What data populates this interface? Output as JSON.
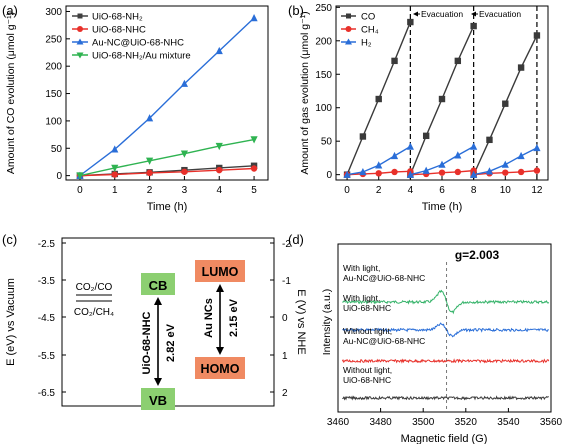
{
  "panels": [
    {
      "id": "a",
      "label": "(a)"
    },
    {
      "id": "b",
      "label": "(b)"
    },
    {
      "id": "c",
      "label": "(c)"
    },
    {
      "id": "d",
      "label": "(d)"
    }
  ],
  "chart_data": [
    {
      "panel": "(a)",
      "type": "line",
      "xlabel": "Time (h)",
      "ylabel": "Amount of CO evolution (μmol g⁻¹)",
      "xlim": [
        -0.4,
        5.4
      ],
      "ylim": [
        -8,
        310
      ],
      "x_ticks": [
        0,
        1,
        2,
        3,
        4,
        5
      ],
      "y_ticks": [
        0,
        50,
        100,
        150,
        200,
        250,
        300
      ],
      "legend_position": "top-left",
      "series": [
        {
          "name": "UiO-68-NH₂",
          "color": "#404040",
          "marker": "square",
          "x": [
            0,
            1,
            2,
            3,
            4,
            5
          ],
          "y": [
            0,
            3,
            6,
            10,
            14,
            18
          ]
        },
        {
          "name": "UiO-68-NHC",
          "color": "#e8302a",
          "marker": "circle",
          "x": [
            0,
            1,
            2,
            3,
            4,
            5
          ],
          "y": [
            0,
            2,
            5,
            7,
            10,
            13
          ]
        },
        {
          "name": "Au-NC@UiO-68-NHC",
          "color": "#2a6ed8",
          "marker": "triangle-up",
          "x": [
            0,
            1,
            2,
            3,
            4,
            5
          ],
          "y": [
            0,
            48,
            105,
            168,
            228,
            288
          ]
        },
        {
          "name": "UiO-68-NH₂/Au mixture",
          "color": "#2fb351",
          "marker": "triangle-down",
          "x": [
            0,
            1,
            2,
            3,
            4,
            5
          ],
          "y": [
            0,
            14,
            27,
            40,
            54,
            66
          ]
        }
      ]
    },
    {
      "panel": "(b)",
      "type": "line",
      "xlabel": "Time (h)",
      "ylabel": "Amount of gas evolution (μmol g⁻¹)",
      "xlim": [
        -0.7,
        12.7
      ],
      "ylim": [
        -8,
        252
      ],
      "x_ticks": [
        0,
        2,
        4,
        6,
        8,
        10,
        12
      ],
      "y_ticks": [
        0,
        50,
        100,
        150,
        200,
        250
      ],
      "legend_position": "top-left",
      "annotations": [
        "Evacuation",
        "Evacuation"
      ],
      "vlines": [
        4,
        8,
        12
      ],
      "series": [
        {
          "name": "CO",
          "color": "#3a3a3a",
          "marker": "square",
          "x": [
            0,
            1,
            2,
            3,
            4,
            4,
            5,
            6,
            7,
            8,
            8,
            9,
            10,
            11,
            12
          ],
          "y": [
            0,
            57,
            113,
            170,
            228,
            0,
            58,
            113,
            170,
            222,
            0,
            52,
            106,
            160,
            208
          ]
        },
        {
          "name": "CH₄",
          "color": "#e8302a",
          "marker": "circle",
          "x": [
            0,
            1,
            2,
            3,
            4,
            4,
            5,
            6,
            7,
            8,
            8,
            9,
            10,
            11,
            12
          ],
          "y": [
            0,
            1,
            2,
            4,
            5,
            0,
            1,
            3,
            4,
            6,
            0,
            2,
            3,
            4,
            6
          ]
        },
        {
          "name": "H₂",
          "color": "#2a6ed8",
          "marker": "triangle-up",
          "x": [
            0,
            1,
            2,
            3,
            4,
            4,
            5,
            6,
            7,
            8,
            8,
            9,
            10,
            11,
            12
          ],
          "y": [
            0,
            4,
            14,
            28,
            42,
            0,
            6,
            15,
            29,
            42,
            0,
            5,
            15,
            28,
            40
          ]
        }
      ]
    },
    {
      "panel": "(c)",
      "type": "diagram",
      "left_axis": {
        "label": "E (eV) vs Vacuum",
        "ticks": [
          "-2.5",
          "-3.5",
          "-4.5",
          "-5.5",
          "-6.5"
        ]
      },
      "right_axis": {
        "label": "E (V) vs NHE",
        "ticks": [
          "-2",
          "-1",
          "0",
          "1",
          "2"
        ]
      },
      "couple_top": "CO₂/CO",
      "couple_bottom": "CO₂/CH₄",
      "mof": {
        "name": "UiO-68-NHC",
        "top_box": "CB",
        "bottom_box": "VB",
        "gap": "2.82 eV"
      },
      "nc": {
        "name": "Au NCs",
        "top_box": "LUMO",
        "bottom_box": "HOMO",
        "gap": "2.15 eV"
      },
      "colors": {
        "cb_vb": "#8ccf71",
        "homo_lumo": "#f08a62"
      }
    },
    {
      "panel": "(d)",
      "type": "line",
      "xlabel": "Magnetic field (G)",
      "ylabel": "Intensity (a.u.)",
      "xlim": [
        3460,
        3560
      ],
      "x_ticks": [
        3460,
        3480,
        3500,
        3520,
        3540,
        3560
      ],
      "peak_label": "g=2.003",
      "series": [
        {
          "name": "With light, Au-NC@UiO-68-NHC",
          "color": "#36b36a",
          "label_lines": [
            "With light,",
            "Au-NC@UiO-68-NHC"
          ],
          "amplitude": 1.0
        },
        {
          "name": "With light, UiO-68-NHC",
          "color": "#2a6ed8",
          "label_lines": [
            "With light,",
            "UiO-68-NHC"
          ],
          "amplitude": 0.55
        },
        {
          "name": "Without light, Au-NC@UiO-68-NHC",
          "color": "#e8302a",
          "label_lines": [
            "Without light,",
            "Au-NC@UiO-68-NHC"
          ],
          "amplitude": 0.0
        },
        {
          "name": "Without light, UiO-68-NHC",
          "color": "#3a3a3a",
          "label_lines": [
            "Without light,",
            "UiO-68-NHC"
          ],
          "amplitude": 0.0
        }
      ]
    }
  ]
}
